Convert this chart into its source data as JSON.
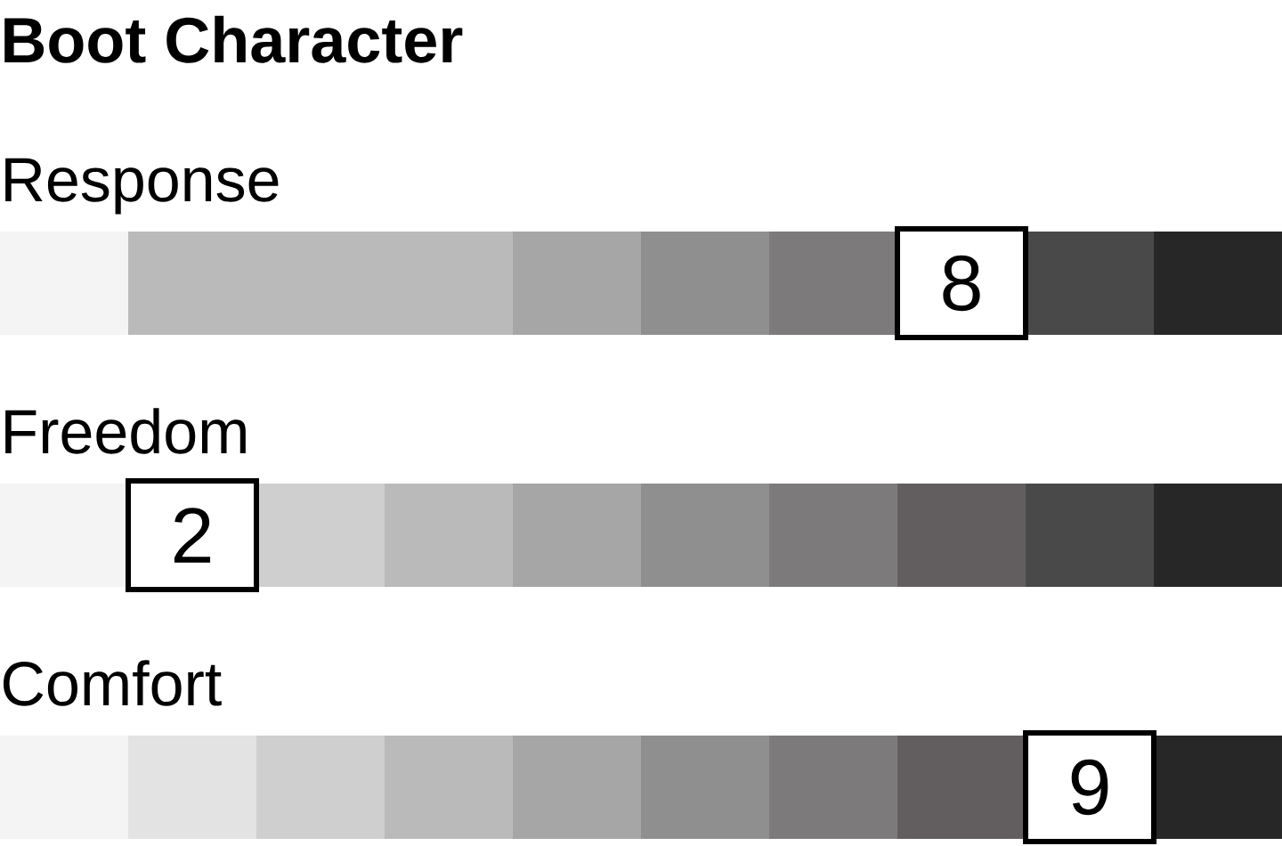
{
  "chart_data": {
    "type": "other",
    "title": "Boot Character",
    "categories": [
      "Response",
      "Freedom",
      "Comfort"
    ],
    "values": [
      8,
      2,
      9
    ],
    "data_labels": true
  }
}
